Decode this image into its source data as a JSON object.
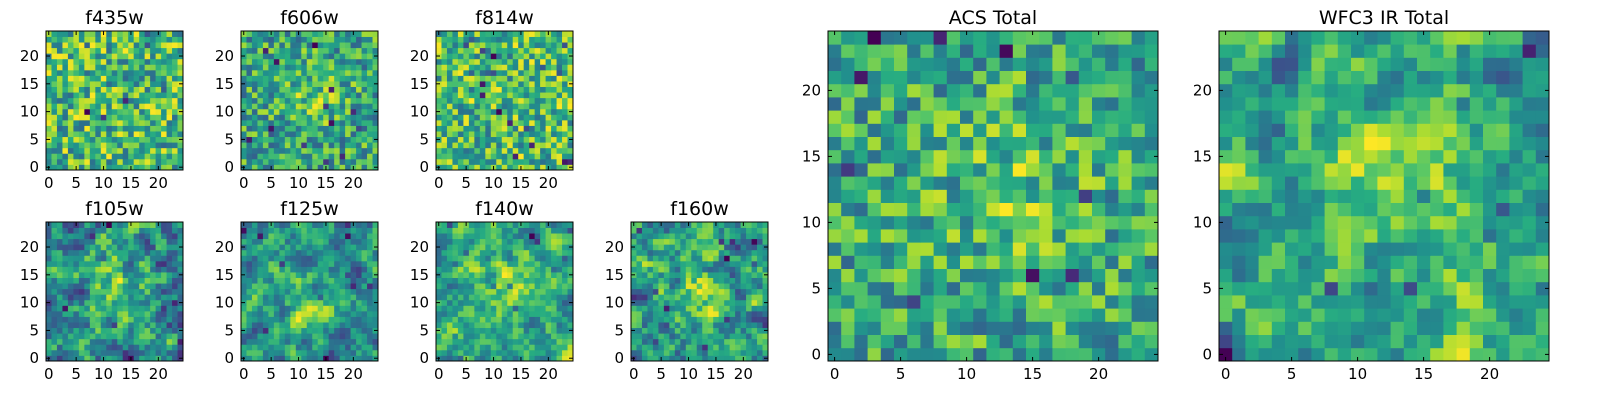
{
  "chart_data": [
    {
      "type": "heatmap",
      "title": "f435w",
      "rows": 25,
      "cols": 25,
      "xlim": [
        -0.5,
        24.5
      ],
      "ylim": [
        -0.5,
        24.5
      ],
      "xticks": [
        0,
        5,
        10,
        15,
        20
      ],
      "yticks": [
        0,
        5,
        10,
        15,
        20
      ],
      "colormap": "viridis",
      "pattern": "noise",
      "seed": 11
    },
    {
      "type": "heatmap",
      "title": "f606w",
      "rows": 25,
      "cols": 25,
      "xlim": [
        -0.5,
        24.5
      ],
      "ylim": [
        -0.5,
        24.5
      ],
      "xticks": [
        0,
        5,
        10,
        15,
        20
      ],
      "yticks": [
        0,
        5,
        10,
        15,
        20
      ],
      "colormap": "viridis",
      "pattern": "noise+blob",
      "seed": 22
    },
    {
      "type": "heatmap",
      "title": "f814w",
      "rows": 25,
      "cols": 25,
      "xlim": [
        -0.5,
        24.5
      ],
      "ylim": [
        -0.5,
        24.5
      ],
      "xticks": [
        0,
        5,
        10,
        15,
        20
      ],
      "yticks": [
        0,
        5,
        10,
        15,
        20
      ],
      "colormap": "viridis",
      "pattern": "noise",
      "seed": 33
    },
    {
      "type": "heatmap",
      "title": "f105w",
      "rows": 25,
      "cols": 25,
      "xlim": [
        -0.5,
        24.5
      ],
      "ylim": [
        -0.5,
        24.5
      ],
      "xticks": [
        0,
        5,
        10,
        15,
        20
      ],
      "yticks": [
        0,
        5,
        10,
        15,
        20
      ],
      "colormap": "viridis",
      "pattern": "smooth+blob",
      "seed": 44
    },
    {
      "type": "heatmap",
      "title": "f125w",
      "rows": 25,
      "cols": 25,
      "xlim": [
        -0.5,
        24.5
      ],
      "ylim": [
        -0.5,
        24.5
      ],
      "xticks": [
        0,
        5,
        10,
        15,
        20
      ],
      "yticks": [
        0,
        5,
        10,
        15,
        20
      ],
      "colormap": "viridis",
      "pattern": "smooth+blob",
      "seed": 55
    },
    {
      "type": "heatmap",
      "title": "f140w",
      "rows": 25,
      "cols": 25,
      "xlim": [
        -0.5,
        24.5
      ],
      "ylim": [
        -0.5,
        24.5
      ],
      "xticks": [
        0,
        5,
        10,
        15,
        20
      ],
      "yticks": [
        0,
        5,
        10,
        15,
        20
      ],
      "colormap": "viridis",
      "pattern": "smooth+blob",
      "seed": 66
    },
    {
      "type": "heatmap",
      "title": "f160w",
      "rows": 25,
      "cols": 25,
      "xlim": [
        -0.5,
        24.5
      ],
      "ylim": [
        -0.5,
        24.5
      ],
      "xticks": [
        0,
        5,
        10,
        15,
        20
      ],
      "yticks": [
        0,
        5,
        10,
        15,
        20
      ],
      "colormap": "viridis",
      "pattern": "smooth+blob",
      "seed": 77
    },
    {
      "type": "heatmap",
      "title": "ACS Total",
      "rows": 25,
      "cols": 25,
      "xlim": [
        -0.5,
        24.5
      ],
      "ylim": [
        -0.5,
        24.5
      ],
      "xticks": [
        0,
        5,
        10,
        15,
        20
      ],
      "yticks": [
        0,
        5,
        10,
        15,
        20
      ],
      "colormap": "viridis",
      "pattern": "noise+blob",
      "seed": 88
    },
    {
      "type": "heatmap",
      "title": "WFC3 IR Total",
      "rows": 25,
      "cols": 25,
      "xlim": [
        -0.5,
        24.5
      ],
      "ylim": [
        -0.5,
        24.5
      ],
      "xticks": [
        0,
        5,
        10,
        15,
        20
      ],
      "yticks": [
        0,
        5,
        10,
        15,
        20
      ],
      "colormap": "viridis",
      "pattern": "smooth+strongblob",
      "seed": 99
    }
  ]
}
